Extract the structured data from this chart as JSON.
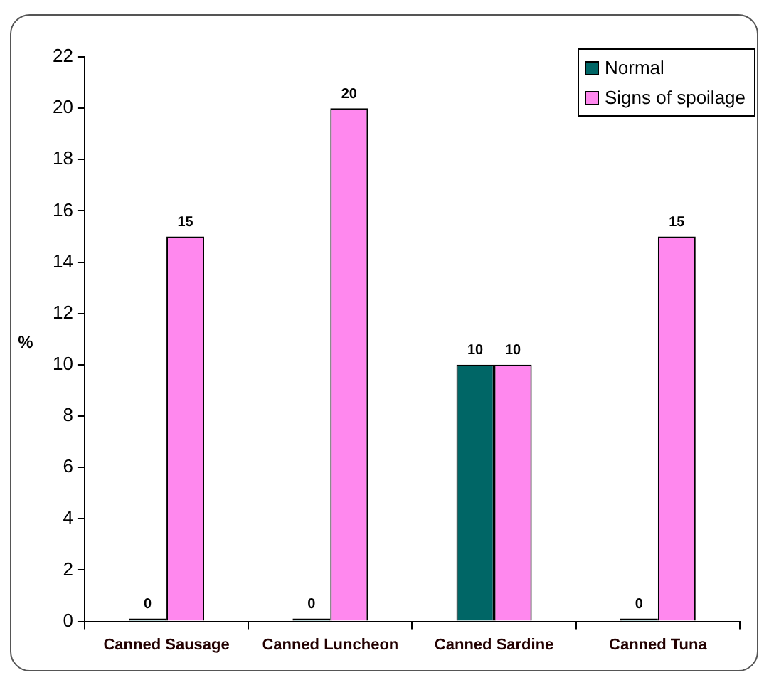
{
  "chart_data": {
    "type": "bar",
    "categories": [
      "Canned Sausage",
      "Canned Luncheon",
      "Canned Sardine",
      "Canned Tuna"
    ],
    "series": [
      {
        "name": "Normal",
        "color": "#006666",
        "values": [
          0,
          0,
          10,
          0
        ]
      },
      {
        "name": "Signs of spoilage",
        "color": "#ff88ee",
        "values": [
          15,
          20,
          10,
          15
        ]
      }
    ],
    "ylabel": "%",
    "ylim": [
      0,
      22
    ],
    "yticks": [
      0,
      2,
      4,
      6,
      8,
      10,
      12,
      14,
      16,
      18,
      20,
      22
    ],
    "data_labels": true,
    "legend": "top right",
    "grid": false
  }
}
